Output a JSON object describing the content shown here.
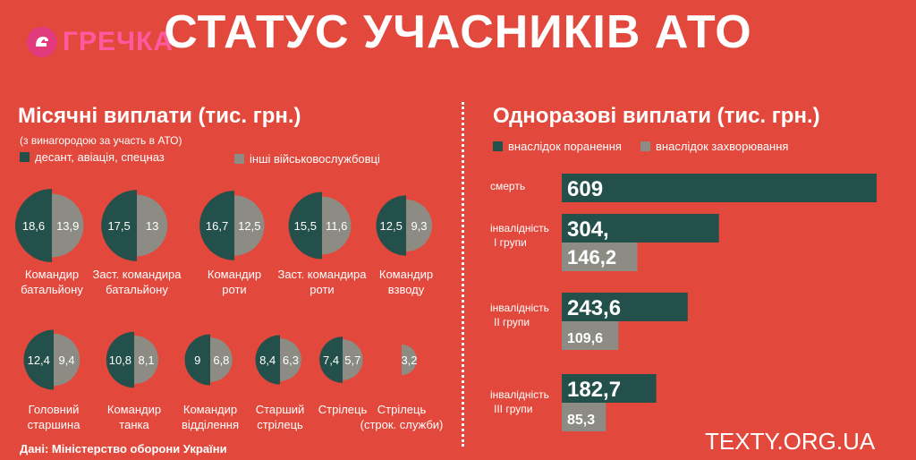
{
  "logo": {
    "text": "ГРЕЧКА"
  },
  "header": {
    "title": "СТАТУС УЧАСНИКІВ АТО"
  },
  "chart_data": [
    {
      "type": "pie",
      "title": "Місячні виплати (тис. грн.)",
      "subtitle": "(з винагородою за участь в АТО)",
      "legend": [
        {
          "name": "десант, авіація,  спецназ",
          "color": "#24504c"
        },
        {
          "name": "інші військовослужбовці",
          "color": "#8c8c84"
        }
      ],
      "categories": [
        "Командир батальйону",
        "Заст. командира батальйону",
        "Командир роти",
        "Заст. командира роти",
        "Командир взводу",
        "Головний старшина",
        "Командир танка",
        "Командир відділення",
        "Старший стрілець",
        "Стрілець",
        "Стрілець (строк. служби)"
      ],
      "label_lines": [
        [
          "Командир",
          "батальйону"
        ],
        [
          "Заст. командира",
          "батальйону"
        ],
        [
          "Командир",
          "роти"
        ],
        [
          "Заст. командира",
          "роти"
        ],
        [
          "Командир",
          "взводу"
        ],
        [
          "Головний",
          "старшина"
        ],
        [
          "Командир",
          "танка"
        ],
        [
          "Командир",
          "відділення"
        ],
        [
          "Старший",
          "стрілець"
        ],
        [
          "Стрілець",
          ""
        ],
        [
          "Стрілець",
          "(строк. служби)"
        ]
      ],
      "series": [
        {
          "name": "десант, авіація,  спецназ",
          "values": [
            "18,6",
            "17,5",
            "16,7",
            "15,5",
            "12,5",
            "12,4",
            "10,8",
            "9",
            "8,4",
            "7,4",
            null
          ]
        },
        {
          "name": "інші військовослужбовці",
          "values": [
            "13,9",
            "13",
            "12,5",
            "11,6",
            "9,3",
            "9,4",
            "8,1",
            "6,8",
            "6,3",
            "5,7",
            "3,2"
          ]
        }
      ]
    },
    {
      "type": "bar",
      "title": "Одноразові виплати (тис. грн.)",
      "legend": [
        {
          "name": "внаслідок поранення",
          "color": "#24504c"
        },
        {
          "name": "внаслідок захворювання",
          "color": "#8c8c84"
        }
      ],
      "categories": [
        "смерть",
        "інвалідність I групи",
        "інвалідність II групи",
        "інвалідність III групи"
      ],
      "category_lines": [
        [
          "смерть",
          ""
        ],
        [
          "інвалідність",
          "I групи"
        ],
        [
          "інвалідність",
          "II групи"
        ],
        [
          "інвалідність",
          "III групи"
        ]
      ],
      "series": [
        {
          "name": "внаслідок поранення",
          "values": [
            609,
            304,
            243.6,
            182.7
          ],
          "labels": [
            "609",
            "304,",
            "243,6",
            "182,7"
          ]
        },
        {
          "name": "внаслідок захворювання",
          "values": [
            null,
            146.2,
            109.6,
            85.3
          ],
          "labels": [
            null,
            "146,2",
            "109,6",
            "85,3"
          ]
        }
      ]
    }
  ],
  "footer": {
    "source": "Дані: Міністерство оборони України",
    "site": "TEXTY.ORG.UA"
  }
}
